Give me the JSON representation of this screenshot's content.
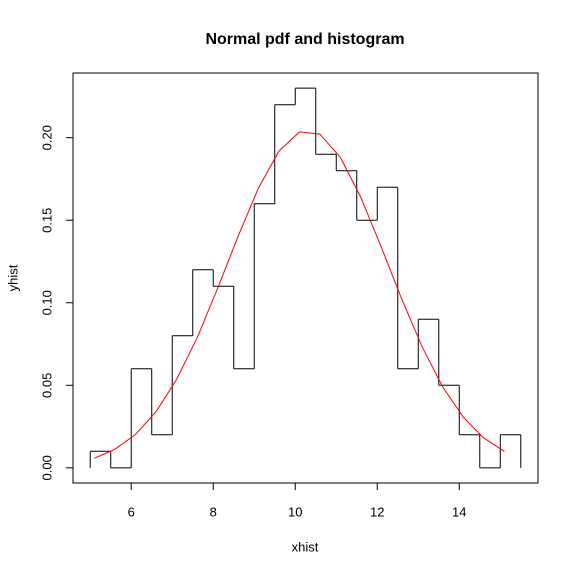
{
  "chart_data": {
    "type": "histogram",
    "title": "Normal pdf and histogram",
    "x_label": "xhist",
    "y_label": "yhist",
    "bins": [
      5,
      5.5,
      6,
      6.5,
      7,
      7.5,
      8,
      8.5,
      9,
      9.5,
      10,
      10.5,
      11,
      11.5,
      12,
      12.5,
      13,
      13.5,
      14,
      14.5,
      15,
      15.5
    ],
    "counts": [
      0.01,
      0,
      0.06,
      0.02,
      0.08,
      0.12,
      0.11,
      0.06,
      0.16,
      0.22,
      0.23,
      0.19,
      0.18,
      0.15,
      0.17,
      0.06,
      0.09,
      0.05,
      0.02,
      0,
      0.02
    ],
    "color": "#000000",
    "lines": [
      {
        "color": "#ff0000",
        "x": [
          5.1,
          5.6,
          6.1,
          6.6,
          7.1,
          7.6,
          8.1,
          8.6,
          9.1,
          9.6,
          10.1,
          10.6,
          11.1,
          11.6,
          12.1,
          12.6,
          13.1,
          13.6,
          14.1,
          14.6,
          15.1
        ],
        "values": [
          0.0058,
          0.0112,
          0.0201,
          0.0338,
          0.0533,
          0.0784,
          0.1083,
          0.1399,
          0.1694,
          0.1918,
          0.2035,
          0.2022,
          0.1881,
          0.1638,
          0.1336,
          0.1021,
          0.073,
          0.0489,
          0.0306,
          0.018,
          0.0099
        ]
      }
    ],
    "xlim": [
      4.58,
      15.92
    ],
    "xticks": [
      6,
      8,
      10,
      12,
      14
    ],
    "ylim": [
      -0.0092,
      0.2392
    ],
    "yticks": [
      {
        "value": 0,
        "label": "0.00"
      },
      {
        "value": 0.05,
        "label": "0.05"
      },
      {
        "value": 0.1,
        "label": "0.10"
      },
      {
        "value": 0.15,
        "label": "0.15"
      },
      {
        "value": 0.2,
        "label": "0.20"
      }
    ]
  }
}
